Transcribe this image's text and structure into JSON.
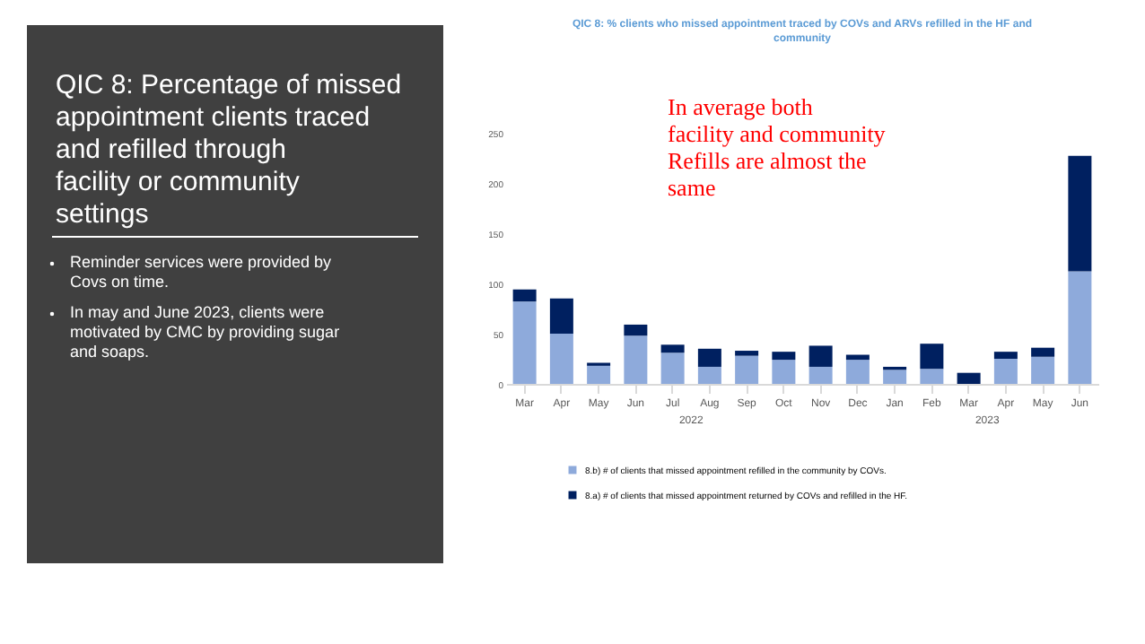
{
  "chart_data": {
    "type": "bar",
    "stacked": true,
    "title": "QIC 8: % clients who missed appointment traced by COVs and ARVs refilled in the HF and community",
    "categories": [
      "Mar",
      "Apr",
      "May",
      "Jun",
      "Jul",
      "Aug",
      "Sep",
      "Oct",
      "Nov",
      "Dec",
      "Jan",
      "Feb",
      "Mar",
      "Apr",
      "May",
      "Jun"
    ],
    "series": [
      {
        "name": "8.b) # of clients that missed appointment refilled in the community by COVs.",
        "color": "#8eaadb",
        "values": [
          82,
          50,
          18,
          48,
          31,
          17,
          28,
          24,
          17,
          24,
          14,
          15,
          0,
          25,
          27,
          112
        ]
      },
      {
        "name": "8.a) # of clients that missed appointment returned by COVs and refilled in the HF.",
        "color": "#002060",
        "values": [
          12,
          35,
          3,
          11,
          8,
          18,
          5,
          8,
          21,
          5,
          3,
          25,
          11,
          7,
          9,
          115
        ]
      }
    ],
    "ylim": [
      0,
      250
    ],
    "yticks": [
      0,
      50,
      100,
      150,
      200,
      250
    ],
    "grid": false,
    "legend": "bottom",
    "annotations": [
      "QIC 8: Percentage of missed appointment clients traced and refilled through facility or community settings",
      "Reminder services were provided by Covs on time.",
      "In may and June 2023, clients were motivated by CMC by providing sugar and soaps.",
      "In average both facility and community Refills are almost the same",
      "2022",
      "2023"
    ]
  }
}
